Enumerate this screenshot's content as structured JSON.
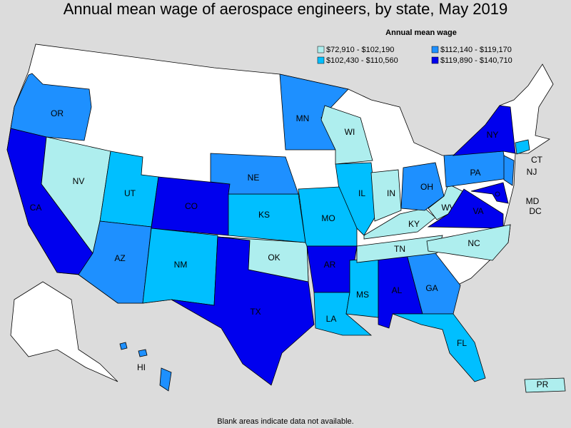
{
  "title": "Annual mean wage of aerospace engineers, by state, May 2019",
  "legend": {
    "title": "Annual mean wage",
    "items": [
      {
        "label": "$72,910 - $102,190",
        "color": "#aeeeee"
      },
      {
        "label": "$102,430 - $110,560",
        "color": "#00bfff"
      },
      {
        "label": "$112,140 - $119,170",
        "color": "#1e90ff"
      },
      {
        "label": "$119,890 - $140,710",
        "color": "#0000ee"
      }
    ]
  },
  "states": [
    {
      "label": "OR",
      "color": "#1e90ff"
    },
    {
      "label": "CA",
      "color": "#0000ee"
    },
    {
      "label": "NV",
      "color": "#aeeeee"
    },
    {
      "label": "UT",
      "color": "#00bfff"
    },
    {
      "label": "AZ",
      "color": "#1e90ff"
    },
    {
      "label": "CO",
      "color": "#0000ee"
    },
    {
      "label": "NM",
      "color": "#00bfff"
    },
    {
      "label": "TX",
      "color": "#0000ee"
    },
    {
      "label": "OK",
      "color": "#aeeeee"
    },
    {
      "label": "KS",
      "color": "#00bfff"
    },
    {
      "label": "NE",
      "color": "#1e90ff"
    },
    {
      "label": "MN",
      "color": "#1e90ff"
    },
    {
      "label": "WI",
      "color": "#aeeeee"
    },
    {
      "label": "IL",
      "color": "#00bfff"
    },
    {
      "label": "MO",
      "color": "#00bfff"
    },
    {
      "label": "AR",
      "color": "#0000ee"
    },
    {
      "label": "LA",
      "color": "#00bfff"
    },
    {
      "label": "MS",
      "color": "#00bfff"
    },
    {
      "label": "AL",
      "color": "#0000ee"
    },
    {
      "label": "GA",
      "color": "#1e90ff"
    },
    {
      "label": "FL",
      "color": "#00bfff"
    },
    {
      "label": "TN",
      "color": "#aeeeee"
    },
    {
      "label": "KY",
      "color": "#aeeeee"
    },
    {
      "label": "IN",
      "color": "#aeeeee"
    },
    {
      "label": "OH",
      "color": "#1e90ff"
    },
    {
      "label": "WV",
      "color": "#aeeeee"
    },
    {
      "label": "VA",
      "color": "#0000ee"
    },
    {
      "label": "NC",
      "color": "#aeeeee"
    },
    {
      "label": "PA",
      "color": "#1e90ff"
    },
    {
      "label": "NY",
      "color": "#0000ee"
    },
    {
      "label": "NJ",
      "color": "#1e90ff"
    },
    {
      "label": "CT",
      "color": "#00bfff"
    },
    {
      "label": "MD",
      "color": "#0000ee"
    },
    {
      "label": "DC",
      "color": "#0000ee"
    },
    {
      "label": "HI",
      "color": "#1e90ff"
    },
    {
      "label": "PR",
      "color": "#aeeeee"
    }
  ],
  "footnote": "Blank areas indicate data not available."
}
